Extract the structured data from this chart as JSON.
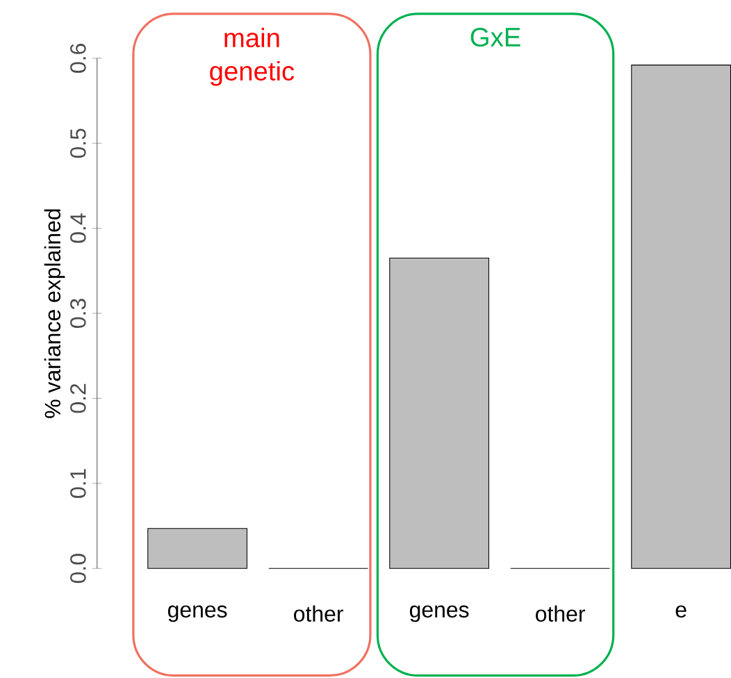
{
  "chart_data": {
    "type": "bar",
    "ylabel": "% variance explained",
    "categories": [
      "genes",
      "other",
      "genes",
      "other",
      "e"
    ],
    "values": [
      0.047,
      0,
      0.365,
      0,
      0.592
    ],
    "color": "#bebebe",
    "ylim": [
      0,
      0.6
    ],
    "yticks": [
      {
        "value": 0,
        "label": "0.0"
      },
      {
        "value": 0.1,
        "label": "0.1"
      },
      {
        "value": 0.2,
        "label": "0.2"
      },
      {
        "value": 0.3,
        "label": "0.3"
      },
      {
        "value": 0.4,
        "label": "0.4"
      },
      {
        "value": 0.5,
        "label": "0.5"
      },
      {
        "value": 0.6,
        "label": "0.6"
      }
    ],
    "annotations": [
      "main genetic",
      "GxE"
    ]
  }
}
